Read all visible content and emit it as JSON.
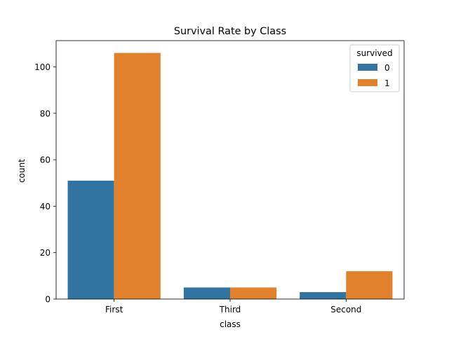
{
  "chart_data": {
    "type": "bar",
    "title": "Survival Rate by Class",
    "xlabel": "class",
    "ylabel": "count",
    "categories": [
      "First",
      "Third",
      "Second"
    ],
    "ylim": [
      0,
      111.3
    ],
    "yticks": [
      0,
      20,
      40,
      60,
      80,
      100
    ],
    "grid": false,
    "legend": {
      "title": "survived",
      "placement": "top-right"
    },
    "series": [
      {
        "name": "0",
        "color": "#3274a1",
        "values": [
          51,
          5,
          3
        ]
      },
      {
        "name": "1",
        "color": "#e1812c",
        "values": [
          106,
          5,
          12
        ]
      }
    ]
  }
}
